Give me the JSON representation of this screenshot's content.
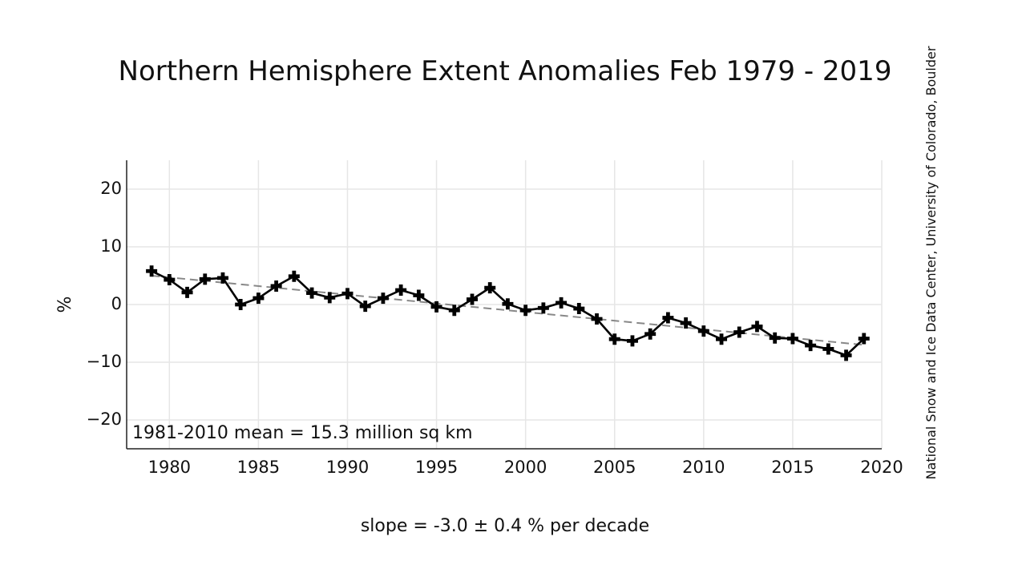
{
  "chart_data": {
    "type": "line",
    "title": "Northern Hemisphere Extent Anomalies Feb 1979 - 2019",
    "xlabel": "slope = -3.0 ± 0.4 % per decade",
    "ylabel": "%",
    "xlim": [
      1977.6,
      2020
    ],
    "ylim": [
      -25,
      25
    ],
    "xticks": [
      1980,
      1985,
      1990,
      1995,
      2000,
      2005,
      2010,
      2015,
      2020
    ],
    "yticks": [
      20,
      10,
      0,
      -10,
      -20
    ],
    "ytick_labels": [
      "20",
      "10",
      "0",
      "−10",
      "−20"
    ],
    "grid": true,
    "annotation": "1981-2010 mean = 15.3 million sq km",
    "credit": "National Snow and Ice Data Center, University of Colorado, Boulder",
    "series": [
      {
        "x": [
          1979,
          1980,
          1981,
          1982,
          1983,
          1984,
          1985,
          1986,
          1987,
          1988,
          1989,
          1990,
          1991,
          1992,
          1993,
          1994,
          1995,
          1996,
          1997,
          1998,
          1999,
          2000,
          2001,
          2002,
          2003,
          2004,
          2005,
          2006,
          2007,
          2008,
          2009,
          2010,
          2011,
          2012,
          2013,
          2014,
          2015,
          2016,
          2017,
          2018,
          2019
        ],
        "values": [
          5.8,
          4.3,
          2.1,
          4.4,
          4.6,
          0.0,
          1.1,
          3.2,
          4.9,
          2.0,
          1.2,
          1.9,
          -0.3,
          1.1,
          2.5,
          1.6,
          -0.4,
          -1.0,
          0.9,
          2.9,
          0.1,
          -1.0,
          -0.6,
          0.3,
          -0.7,
          -2.5,
          -6.0,
          -6.3,
          -5.1,
          -2.3,
          -3.2,
          -4.6,
          -6.0,
          -4.8,
          -3.8,
          -5.8,
          -5.9,
          -7.1,
          -7.7,
          -8.8,
          -5.9
        ]
      }
    ],
    "trend": {
      "x": [
        1979,
        2019
      ],
      "values": [
        5.0,
        -7.0
      ]
    }
  }
}
